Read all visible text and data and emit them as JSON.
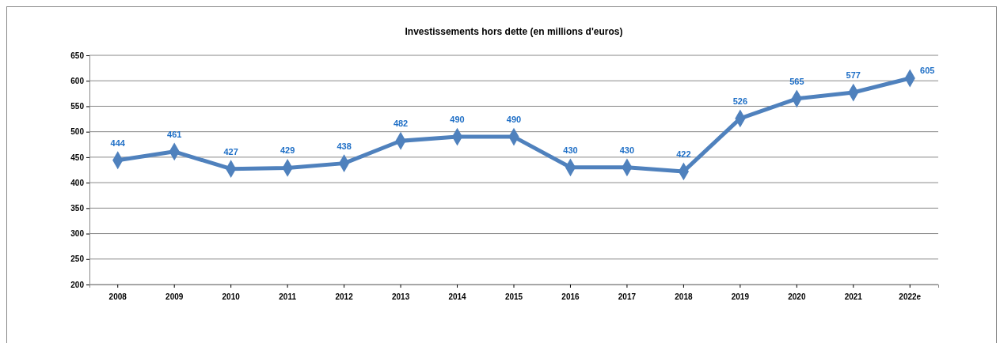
{
  "chart_data": {
    "type": "line",
    "title": "Investissements hors dette (en millions d'euros)",
    "categories": [
      "2008",
      "2009",
      "2010",
      "2011",
      "2012",
      "2013",
      "2014",
      "2015",
      "2016",
      "2017",
      "2018",
      "2019",
      "2020",
      "2021",
      "2022e"
    ],
    "series": [
      {
        "color": "#4f81bd",
        "values": [
          444,
          461,
          427,
          429,
          438,
          482,
          490,
          490,
          430,
          430,
          422,
          526,
          565,
          577,
          605
        ]
      }
    ],
    "ylim": [
      200,
      650
    ],
    "yticks": [
      200,
      250,
      300,
      350,
      400,
      450,
      500,
      550,
      600,
      650
    ],
    "grid": "y",
    "marker": "diamond",
    "line_style": "solid",
    "data_labels": true
  }
}
